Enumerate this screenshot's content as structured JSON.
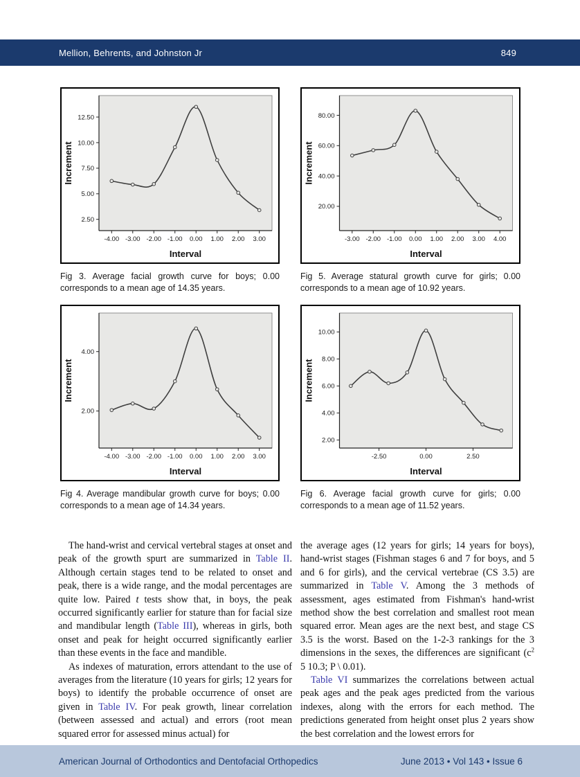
{
  "header": {
    "running_title": "Mellion, Behrents, and Johnston Jr",
    "page_number": "849"
  },
  "figures": [
    {
      "caption": "Fig 3. Average facial growth curve for boys; 0.00 corresponds to a mean age of 14.35 years."
    },
    {
      "caption": "Fig 5. Average statural growth curve for girls; 0.00 corresponds to a mean age of 10.92 years."
    },
    {
      "caption": "Fig 4. Average mandibular growth curve for boys; 0.00 corresponds to a mean age of 14.34 years."
    },
    {
      "caption": "Fig 6. Average facial growth curve for girls; 0.00 corresponds to a mean age of 11.52 years."
    }
  ],
  "chart_data": [
    {
      "id": "fig3-boys-facial",
      "type": "line",
      "title": "",
      "xlabel": "Interval",
      "ylabel": "Increment",
      "x": [
        -4,
        -3,
        -2,
        -1,
        0,
        1,
        2,
        3
      ],
      "y": [
        6.25,
        5.9,
        5.95,
        9.55,
        13.5,
        8.3,
        5.1,
        3.4
      ],
      "xlim": [
        -4.6,
        3.6
      ],
      "ylim": [
        1.4,
        14.6
      ],
      "xticks": [
        -4,
        -3,
        -2,
        -1,
        0,
        1,
        2,
        3
      ],
      "xtick_labels": [
        "-4.00",
        "-3.00",
        "-2.00",
        "-1.00",
        "0.00",
        "1.00",
        "2.00",
        "3.00"
      ],
      "yticks": [
        2.5,
        5,
        7.5,
        10,
        12.5
      ],
      "ytick_labels": [
        "2.50",
        "5.00",
        "7.50",
        "10.00",
        "12.50"
      ],
      "grid": false,
      "legend": false
    },
    {
      "id": "fig5-girls-statural",
      "type": "line",
      "title": "",
      "xlabel": "Interval",
      "ylabel": "Increment",
      "x": [
        -3,
        -2,
        -1,
        0,
        1,
        2,
        3,
        4
      ],
      "y": [
        53.5,
        57.0,
        60.5,
        83.0,
        56.0,
        38.0,
        21.0,
        12.0
      ],
      "xlim": [
        -3.6,
        4.6
      ],
      "ylim": [
        4,
        93
      ],
      "xticks": [
        -3,
        -2,
        -1,
        0,
        1,
        2,
        3,
        4
      ],
      "xtick_labels": [
        "-3.00",
        "-2.00",
        "-1.00",
        "0.00",
        "1.00",
        "2.00",
        "3.00",
        "4.00"
      ],
      "yticks": [
        20,
        40,
        60,
        80
      ],
      "ytick_labels": [
        "20.00",
        "40.00",
        "60.00",
        "80.00"
      ],
      "grid": false,
      "legend": false
    },
    {
      "id": "fig4-boys-mandibular",
      "type": "line",
      "title": "",
      "xlabel": "Interval",
      "ylabel": "Increment",
      "x": [
        -4,
        -3,
        -2,
        -1,
        0,
        1,
        2,
        3
      ],
      "y": [
        2.03,
        2.25,
        2.08,
        3.0,
        4.78,
        2.73,
        1.85,
        1.1
      ],
      "xlim": [
        -4.6,
        3.6
      ],
      "ylim": [
        0.75,
        5.3
      ],
      "xticks": [
        -4,
        -3,
        -2,
        -1,
        0,
        1,
        2,
        3
      ],
      "xtick_labels": [
        "-4.00",
        "-3.00",
        "-2.00",
        "-1.00",
        "0.00",
        "1.00",
        "2.00",
        "3.00"
      ],
      "yticks": [
        2,
        4
      ],
      "ytick_labels": [
        "2.00",
        "4.00"
      ],
      "grid": false,
      "legend": false
    },
    {
      "id": "fig6-girls-facial",
      "type": "line",
      "title": "",
      "xlabel": "Interval",
      "ylabel": "Increment",
      "x": [
        -4,
        -3,
        -2,
        -1,
        0,
        1,
        2,
        3,
        4
      ],
      "y": [
        6.0,
        7.05,
        6.2,
        7.0,
        10.1,
        6.5,
        4.75,
        3.15,
        2.7
      ],
      "xlim": [
        -4.6,
        4.6
      ],
      "ylim": [
        1.4,
        11.4
      ],
      "xticks": [
        -2.5,
        0,
        2.5
      ],
      "xtick_labels": [
        "-2.50",
        "0.00",
        "2.50"
      ],
      "yticks": [
        2,
        4,
        6,
        8,
        10
      ],
      "ytick_labels": [
        "2.00",
        "4.00",
        "6.00",
        "8.00",
        "10.00"
      ],
      "grid": false,
      "legend": false
    }
  ],
  "body": {
    "columns": [
      {
        "paragraphs": [
          {
            "indent": true,
            "segments": [
              {
                "t": "The hand-wrist and cervical vertebral stages at onset and peak of the growth spurt are summarized in "
              },
              {
                "t": "Table II",
                "link": true
              },
              {
                "t": ". Although certain stages tend to be related to onset and peak, there is a wide range, and the modal percentages are quite low. Paired "
              },
              {
                "t": "t",
                "italic": true
              },
              {
                "t": " tests show that, in boys, the peak occurred significantly earlier for stature than for facial size and mandibular length ("
              },
              {
                "t": "Table III",
                "link": true
              },
              {
                "t": "), whereas in girls, both onset and peak for height occurred significantly earlier than these events in the face and mandible."
              }
            ]
          },
          {
            "indent": true,
            "segments": [
              {
                "t": "As indexes of maturation, errors attendant to the use of averages from the literature (10 years for girls; 12 years for boys) to identify the probable occurrence of onset are given in "
              },
              {
                "t": "Table IV",
                "link": true
              },
              {
                "t": ". For peak growth, linear correlation (between assessed and actual) and errors (root mean squared error for assessed minus actual) for"
              }
            ]
          }
        ]
      },
      {
        "paragraphs": [
          {
            "indent": false,
            "segments": [
              {
                "t": "the average ages (12 years for girls; 14 years for boys), hand-wrist stages (Fishman stages 6 and 7 for boys, and 5 and 6 for girls), and the cervical vertebrae (CS 3.5) are summarized in "
              },
              {
                "t": "Table V",
                "link": true
              },
              {
                "t": ". Among the 3 methods of assessment, ages estimated from Fishman's hand-wrist method show the best correlation and smallest root mean squared error. Mean ages are the next best, and stage CS 3.5 is the worst. Based on the 1-2-3 rankings for the 3 dimensions in the sexes, the differences are significant (c"
              },
              {
                "t": "2",
                "sup": true
              },
              {
                "t": " 5  10.3; P \\ 0.01)."
              }
            ]
          },
          {
            "indent": true,
            "segments": [
              {
                "t": "Table VI",
                "link": true
              },
              {
                "t": " summarizes the correlations between actual peak ages and the peak ages predicted from the various indexes, along with the errors for each method. The predictions generated from height onset plus 2 years show the best correlation and the lowest errors for"
              }
            ]
          }
        ]
      }
    ]
  },
  "footer": {
    "journal": "American Journal of Orthodontics and Dentofacial Orthopedics",
    "issue_info": "June 2013 • Vol 143 • Issue 6"
  },
  "colors": {
    "header_navy": "#1b3a6d",
    "footer_blue": "#b8c7dc",
    "link_blue": "#3939ac",
    "plot_bg": "#e8e8e6",
    "curve": "#3f3f3f"
  }
}
